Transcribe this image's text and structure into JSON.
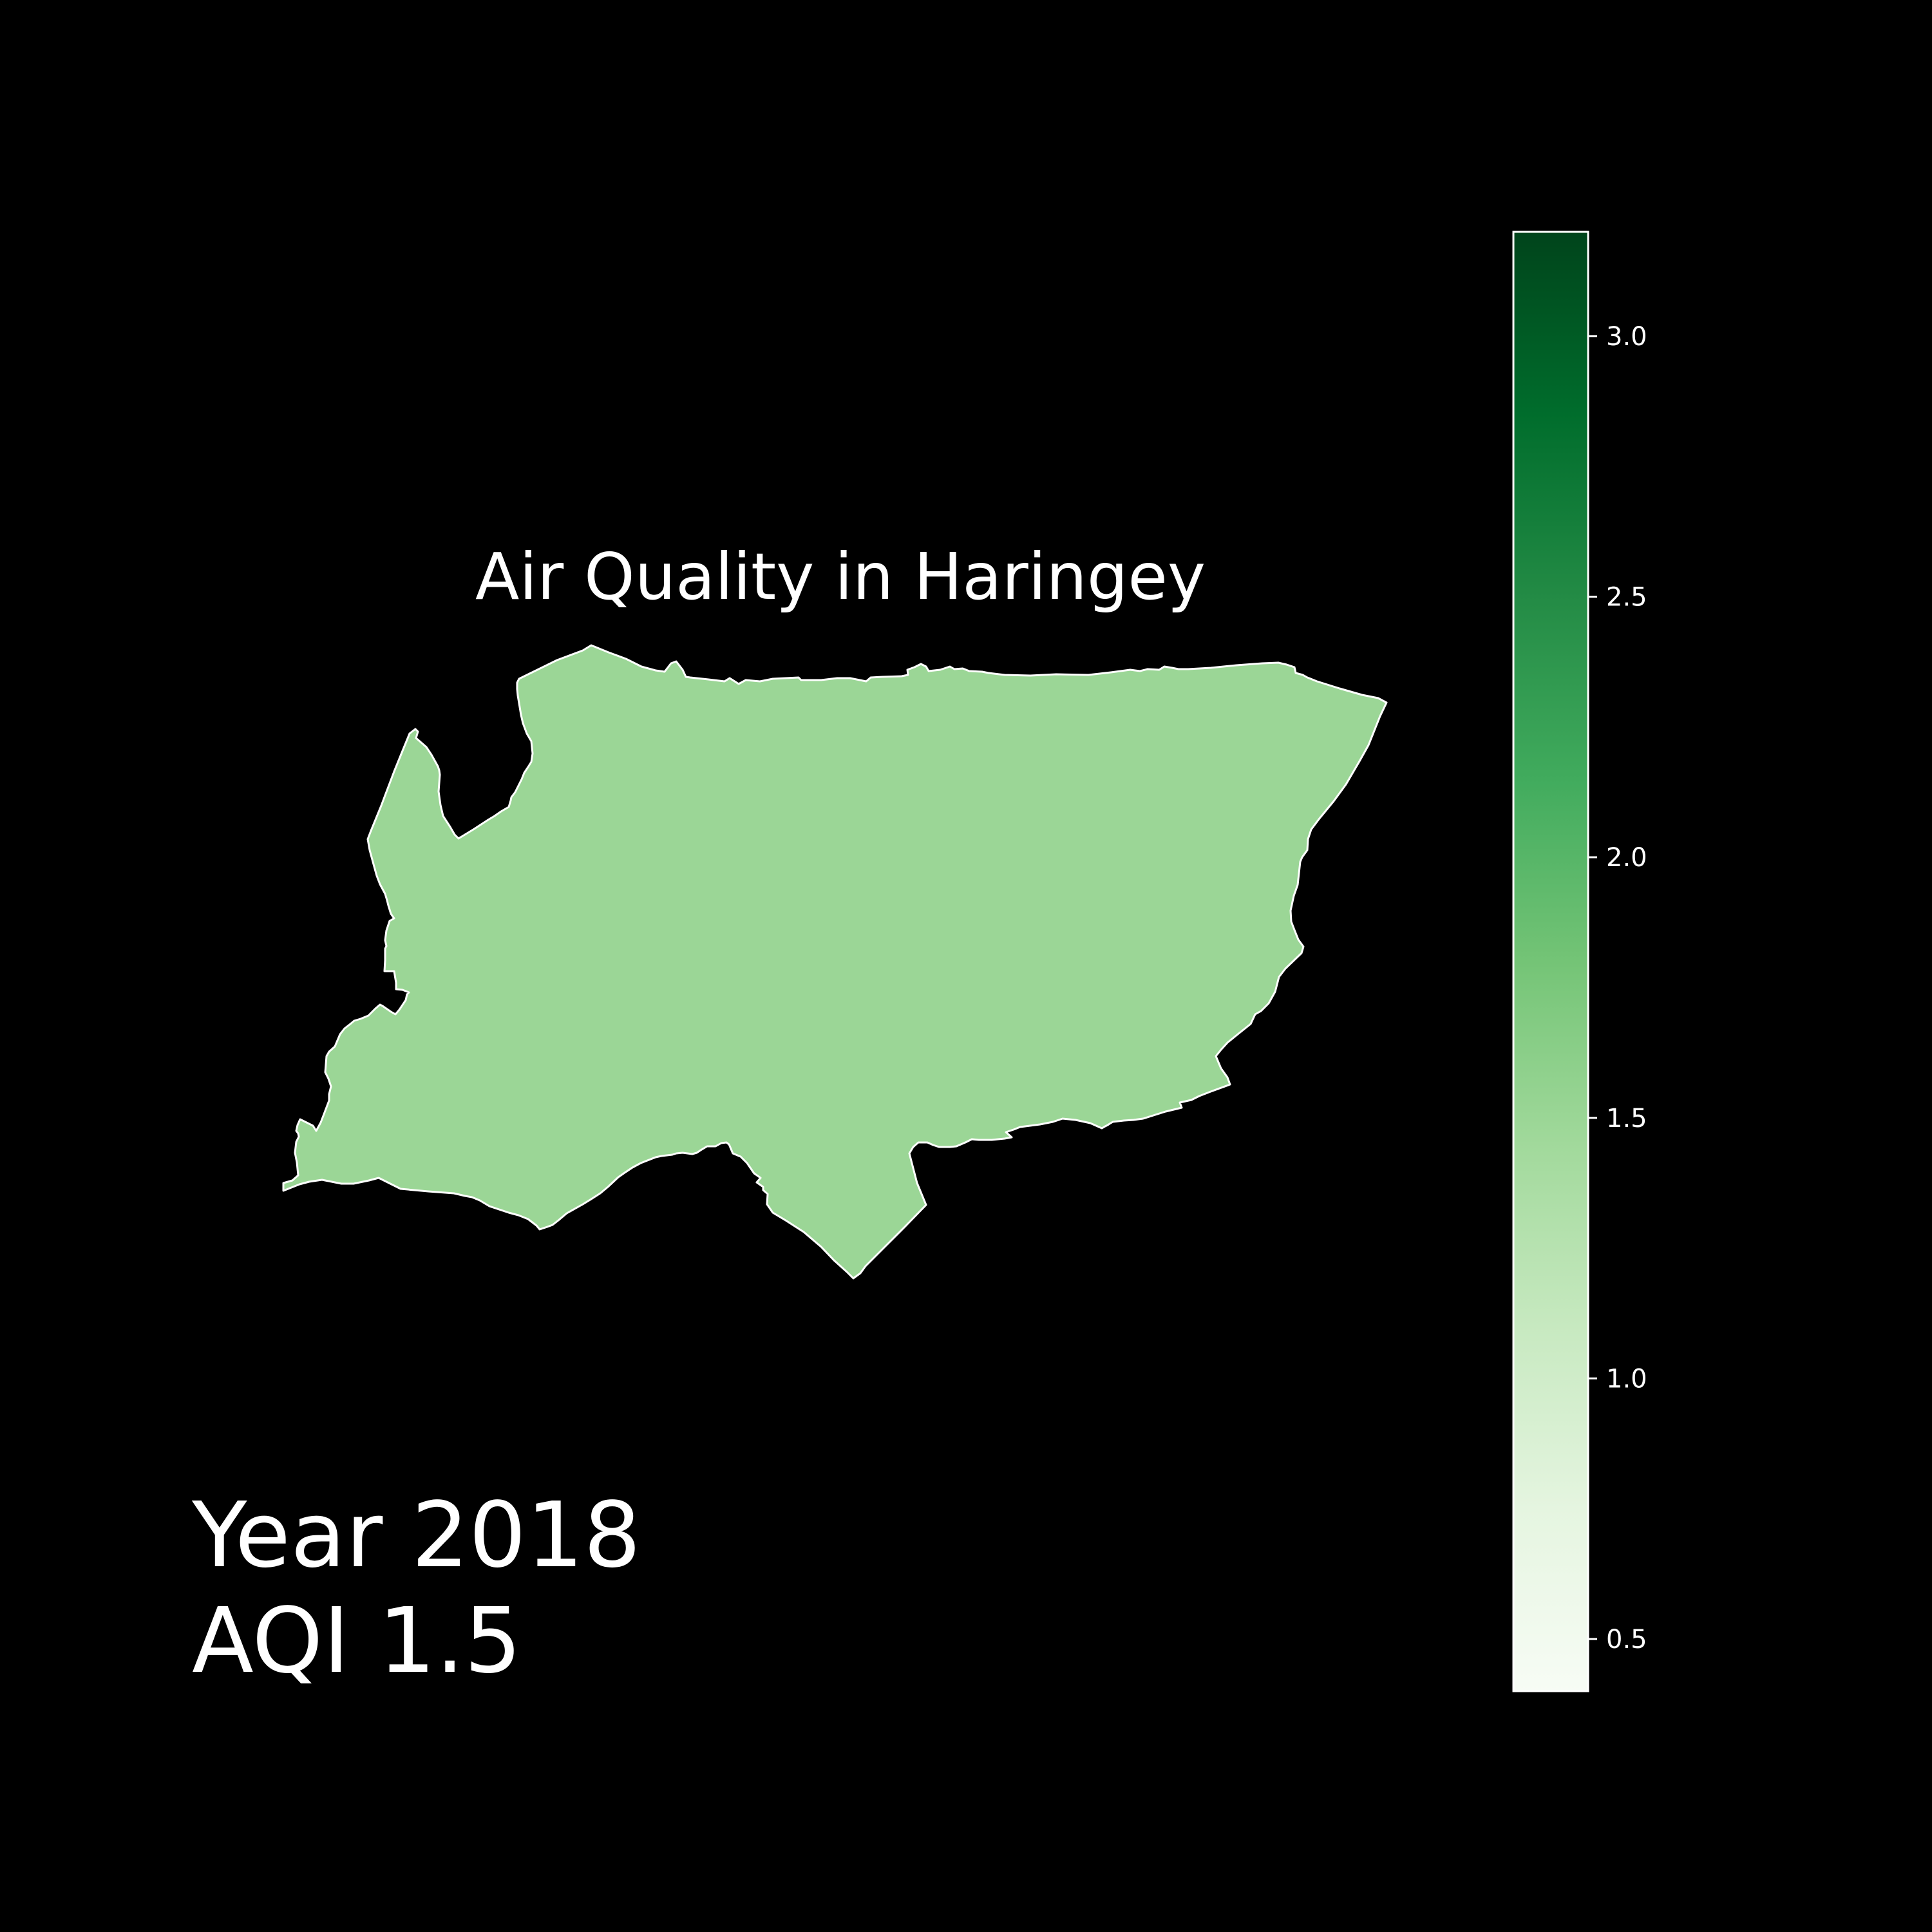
{
  "map": {
    "title": "Air Quality in Haringey",
    "region_name": "Haringey",
    "region_value": 1.5,
    "background_color": "#000000",
    "outline_color": "#ffffff"
  },
  "overlay": {
    "year_label": "Year 2018",
    "aqi_label": "AQI 1.5"
  },
  "colorbar": {
    "colormap": "Greens",
    "min": 0.4,
    "max": 3.2,
    "ticks": [
      0.5,
      1.0,
      1.5,
      2.0,
      2.5,
      3.0
    ],
    "tick_labels": [
      "0.5",
      "1.0",
      "1.5",
      "2.0",
      "2.5",
      "3.0"
    ],
    "color_stops": [
      "#f7fcf5",
      "#e5f5e0",
      "#c7e9c0",
      "#a1d99b",
      "#74c476",
      "#41ab5d",
      "#238b45",
      "#006d2c",
      "#00441b"
    ]
  }
}
